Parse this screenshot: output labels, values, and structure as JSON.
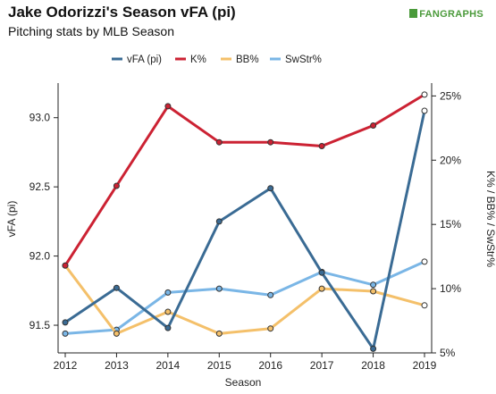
{
  "header": {
    "title": "Jake Odorizzi's Season vFA (pi)",
    "subtitle": "Pitching stats by MLB Season",
    "logo_text": "FANGRAPHS"
  },
  "colors": {
    "vfa": "#3a6b94",
    "k": "#cc2233",
    "bb": "#f4c06a",
    "swstr": "#7ab6e6",
    "axis": "#222222"
  },
  "chart_data": {
    "type": "line",
    "x": [
      2012,
      2013,
      2014,
      2015,
      2016,
      2017,
      2018,
      2019
    ],
    "xlabel": "Season",
    "ylabel": "vFA (pi)",
    "y2label": "K% / BB% / SwStr%",
    "ylim": [
      91.3,
      93.25
    ],
    "y2lim": [
      5,
      26
    ],
    "yticks": [
      "91.5",
      "92.0",
      "92.5",
      "93.0"
    ],
    "y2ticks": [
      "5%",
      "10%",
      "15%",
      "20%",
      "25%"
    ],
    "legend_position": "top",
    "series": [
      {
        "name": "vFA (pi)",
        "axis": "left",
        "color": "#3a6b94",
        "values": [
          91.52,
          91.77,
          91.48,
          92.25,
          92.49,
          91.88,
          91.33,
          93.05
        ]
      },
      {
        "name": "K%",
        "axis": "right",
        "color": "#cc2233",
        "values": [
          11.8,
          18.0,
          24.2,
          21.4,
          21.4,
          21.1,
          22.7,
          25.1
        ]
      },
      {
        "name": "BB%",
        "axis": "right",
        "color": "#f4c06a",
        "values": [
          11.8,
          6.5,
          8.2,
          6.5,
          6.9,
          10.0,
          9.8,
          8.7
        ]
      },
      {
        "name": "SwStr%",
        "axis": "right",
        "color": "#7ab6e6",
        "values": [
          6.5,
          6.8,
          9.7,
          10.0,
          9.5,
          11.3,
          10.3,
          12.1
        ]
      }
    ]
  }
}
